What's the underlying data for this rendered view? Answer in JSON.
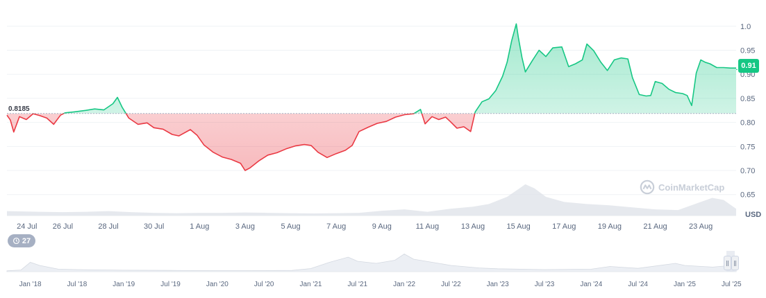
{
  "chart_data": {
    "type": "line",
    "currency_label": "USD",
    "reference_value": 0.8185,
    "reference_label": "0.8185",
    "current_value": 0.91,
    "current_label": "0.91",
    "y_ticks": [
      "1.0",
      "0.95",
      "0.90",
      "0.85",
      "0.80",
      "0.75",
      "0.70",
      "0.65"
    ],
    "y_tick_values": [
      1.0,
      0.95,
      0.9,
      0.85,
      0.8,
      0.75,
      0.7,
      0.65
    ],
    "ylim": [
      0.628,
      1.043
    ],
    "x_ticks": [
      "24 Jul",
      "26 Jul",
      "28 Jul",
      "30 Jul",
      "1 Aug",
      "3 Aug",
      "5 Aug",
      "7 Aug",
      "9 Aug",
      "11 Aug",
      "13 Aug",
      "15 Aug",
      "17 Aug",
      "19 Aug",
      "21 Aug",
      "23 Aug"
    ],
    "x_tick_days": [
      0,
      2,
      4,
      6,
      8,
      10,
      12,
      14,
      16,
      18,
      20,
      22,
      24,
      26,
      28,
      30
    ],
    "xlim_days": [
      -0.45,
      31.55
    ],
    "price_series": [
      [
        -0.45,
        0.815
      ],
      [
        -0.3,
        0.805
      ],
      [
        -0.15,
        0.78
      ],
      [
        0.1,
        0.812
      ],
      [
        0.4,
        0.806
      ],
      [
        0.7,
        0.818
      ],
      [
        1.0,
        0.814
      ],
      [
        1.3,
        0.809
      ],
      [
        1.6,
        0.796
      ],
      [
        1.9,
        0.815
      ],
      [
        2.1,
        0.82
      ],
      [
        2.5,
        0.822
      ],
      [
        3.0,
        0.825
      ],
      [
        3.4,
        0.828
      ],
      [
        3.8,
        0.826
      ],
      [
        4.2,
        0.839
      ],
      [
        4.4,
        0.852
      ],
      [
        4.6,
        0.832
      ],
      [
        4.9,
        0.809
      ],
      [
        5.3,
        0.796
      ],
      [
        5.7,
        0.799
      ],
      [
        6.0,
        0.789
      ],
      [
        6.4,
        0.786
      ],
      [
        6.8,
        0.775
      ],
      [
        7.1,
        0.772
      ],
      [
        7.6,
        0.785
      ],
      [
        7.9,
        0.773
      ],
      [
        8.2,
        0.753
      ],
      [
        8.6,
        0.738
      ],
      [
        9.0,
        0.728
      ],
      [
        9.4,
        0.723
      ],
      [
        9.8,
        0.715
      ],
      [
        10.0,
        0.7
      ],
      [
        10.2,
        0.705
      ],
      [
        10.6,
        0.72
      ],
      [
        11.0,
        0.732
      ],
      [
        11.4,
        0.737
      ],
      [
        11.8,
        0.745
      ],
      [
        12.2,
        0.751
      ],
      [
        12.6,
        0.754
      ],
      [
        12.9,
        0.752
      ],
      [
        13.2,
        0.738
      ],
      [
        13.6,
        0.727
      ],
      [
        14.0,
        0.735
      ],
      [
        14.4,
        0.742
      ],
      [
        14.7,
        0.752
      ],
      [
        15.0,
        0.781
      ],
      [
        15.4,
        0.79
      ],
      [
        15.8,
        0.798
      ],
      [
        16.2,
        0.802
      ],
      [
        16.6,
        0.811
      ],
      [
        17.0,
        0.816
      ],
      [
        17.4,
        0.818
      ],
      [
        17.7,
        0.827
      ],
      [
        17.9,
        0.797
      ],
      [
        18.2,
        0.812
      ],
      [
        18.5,
        0.806
      ],
      [
        18.8,
        0.811
      ],
      [
        19.0,
        0.802
      ],
      [
        19.3,
        0.788
      ],
      [
        19.6,
        0.791
      ],
      [
        19.9,
        0.781
      ],
      [
        20.1,
        0.822
      ],
      [
        20.4,
        0.843
      ],
      [
        20.7,
        0.849
      ],
      [
        21.0,
        0.866
      ],
      [
        21.3,
        0.896
      ],
      [
        21.5,
        0.925
      ],
      [
        21.7,
        0.97
      ],
      [
        21.9,
        1.005
      ],
      [
        22.0,
        0.975
      ],
      [
        22.15,
        0.935
      ],
      [
        22.3,
        0.905
      ],
      [
        22.6,
        0.928
      ],
      [
        22.9,
        0.95
      ],
      [
        23.2,
        0.937
      ],
      [
        23.5,
        0.955
      ],
      [
        23.9,
        0.957
      ],
      [
        24.2,
        0.916
      ],
      [
        24.5,
        0.922
      ],
      [
        24.8,
        0.93
      ],
      [
        25.0,
        0.963
      ],
      [
        25.3,
        0.949
      ],
      [
        25.6,
        0.926
      ],
      [
        25.9,
        0.908
      ],
      [
        26.2,
        0.93
      ],
      [
        26.5,
        0.934
      ],
      [
        26.8,
        0.932
      ],
      [
        27.0,
        0.893
      ],
      [
        27.3,
        0.858
      ],
      [
        27.6,
        0.855
      ],
      [
        27.8,
        0.856
      ],
      [
        28.0,
        0.885
      ],
      [
        28.3,
        0.881
      ],
      [
        28.6,
        0.869
      ],
      [
        28.9,
        0.862
      ],
      [
        29.2,
        0.86
      ],
      [
        29.4,
        0.856
      ],
      [
        29.6,
        0.835
      ],
      [
        29.8,
        0.903
      ],
      [
        30.0,
        0.93
      ],
      [
        30.2,
        0.925
      ],
      [
        30.4,
        0.922
      ],
      [
        30.7,
        0.914
      ],
      [
        31.0,
        0.914
      ],
      [
        31.3,
        0.913
      ],
      [
        31.55,
        0.913
      ]
    ],
    "volume_series": [
      [
        -0.45,
        0.13
      ],
      [
        1.0,
        0.11
      ],
      [
        2.0,
        0.1
      ],
      [
        3.0,
        0.11
      ],
      [
        4.0,
        0.13
      ],
      [
        5.0,
        0.1
      ],
      [
        6.0,
        0.08
      ],
      [
        7.0,
        0.07
      ],
      [
        8.0,
        0.08
      ],
      [
        9.0,
        0.08
      ],
      [
        10.0,
        0.09
      ],
      [
        11.0,
        0.08
      ],
      [
        12.0,
        0.07
      ],
      [
        13.0,
        0.06
      ],
      [
        14.0,
        0.07
      ],
      [
        15.0,
        0.08
      ],
      [
        16.0,
        0.14
      ],
      [
        17.0,
        0.18
      ],
      [
        18.0,
        0.11
      ],
      [
        19.0,
        0.2
      ],
      [
        20.0,
        0.26
      ],
      [
        20.7,
        0.34
      ],
      [
        21.5,
        0.55
      ],
      [
        22.0,
        0.78
      ],
      [
        22.3,
        0.92
      ],
      [
        22.7,
        0.8
      ],
      [
        23.2,
        0.55
      ],
      [
        24.0,
        0.4
      ],
      [
        25.0,
        0.34
      ],
      [
        26.0,
        0.3
      ],
      [
        27.0,
        0.24
      ],
      [
        28.0,
        0.18
      ],
      [
        29.0,
        0.16
      ],
      [
        30.0,
        0.4
      ],
      [
        30.5,
        0.52
      ],
      [
        31.0,
        0.46
      ],
      [
        31.55,
        0.2
      ]
    ],
    "navigator_ticks": [
      "Jan '18",
      "Jul '18",
      "Jan '19",
      "Jul '19",
      "Jan '20",
      "Jul '20",
      "Jan '21",
      "Jul '21",
      "Jan '22",
      "Jul '22",
      "Jan '23",
      "Jul '23",
      "Jan '24",
      "Jul '24",
      "Jan '25",
      "Jul '25"
    ],
    "navigator_tick_years": [
      2018.0,
      2018.5,
      2019.0,
      2019.5,
      2020.0,
      2020.5,
      2021.0,
      2021.5,
      2022.0,
      2022.5,
      2023.0,
      2023.5,
      2024.0,
      2024.5,
      2025.0,
      2025.5
    ],
    "navigator_xlim_years": [
      2017.75,
      2025.55
    ],
    "navigator_series": [
      [
        2017.75,
        0.04
      ],
      [
        2017.9,
        0.08
      ],
      [
        2018.0,
        0.45
      ],
      [
        2018.1,
        0.3
      ],
      [
        2018.3,
        0.12
      ],
      [
        2018.5,
        0.1
      ],
      [
        2019.0,
        0.07
      ],
      [
        2019.5,
        0.06
      ],
      [
        2020.0,
        0.05
      ],
      [
        2020.3,
        0.05
      ],
      [
        2020.8,
        0.06
      ],
      [
        2021.0,
        0.15
      ],
      [
        2021.2,
        0.45
      ],
      [
        2021.4,
        0.7
      ],
      [
        2021.5,
        0.5
      ],
      [
        2021.7,
        0.4
      ],
      [
        2021.9,
        0.55
      ],
      [
        2022.0,
        0.85
      ],
      [
        2022.1,
        0.6
      ],
      [
        2022.3,
        0.45
      ],
      [
        2022.5,
        0.3
      ],
      [
        2022.8,
        0.18
      ],
      [
        2023.0,
        0.14
      ],
      [
        2023.5,
        0.1
      ],
      [
        2024.0,
        0.12
      ],
      [
        2024.2,
        0.25
      ],
      [
        2024.5,
        0.16
      ],
      [
        2024.9,
        0.4
      ],
      [
        2025.0,
        0.3
      ],
      [
        2025.3,
        0.22
      ],
      [
        2025.5,
        0.3
      ],
      [
        2025.55,
        0.35
      ]
    ],
    "selected_range_label": "27",
    "up_color": "#16c784",
    "down_color": "#ea3943"
  },
  "watermark": {
    "text": "CoinMarketCap"
  }
}
